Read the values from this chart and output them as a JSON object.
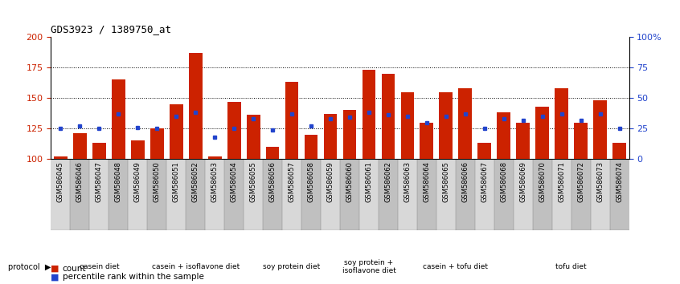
{
  "title": "GDS3923 / 1389750_at",
  "samples": [
    "GSM586045",
    "GSM586046",
    "GSM586047",
    "GSM586048",
    "GSM586049",
    "GSM586050",
    "GSM586051",
    "GSM586052",
    "GSM586053",
    "GSM586054",
    "GSM586055",
    "GSM586056",
    "GSM586057",
    "GSM586058",
    "GSM586059",
    "GSM586060",
    "GSM586061",
    "GSM586062",
    "GSM586063",
    "GSM586064",
    "GSM586065",
    "GSM586066",
    "GSM586067",
    "GSM586068",
    "GSM586069",
    "GSM586070",
    "GSM586071",
    "GSM586072",
    "GSM586073",
    "GSM586074"
  ],
  "counts": [
    102,
    121,
    113,
    165,
    115,
    125,
    145,
    187,
    102,
    147,
    136,
    110,
    163,
    120,
    137,
    140,
    173,
    170,
    155,
    130,
    155,
    158,
    113,
    138,
    130,
    143,
    158,
    130,
    148,
    113
  ],
  "percentile_ranks": [
    25,
    27,
    25,
    37,
    26,
    25,
    35,
    38,
    18,
    25,
    33,
    24,
    37,
    27,
    33,
    34,
    38,
    36,
    35,
    30,
    35,
    37,
    25,
    33,
    32,
    35,
    37,
    32,
    37,
    25
  ],
  "groups": [
    {
      "label": "casein diet",
      "start": 0,
      "end": 5,
      "color": "#ccffcc"
    },
    {
      "label": "casein + isoflavone diet",
      "start": 5,
      "end": 10,
      "color": "#77dd77"
    },
    {
      "label": "soy protein diet",
      "start": 10,
      "end": 15,
      "color": "#ccffcc"
    },
    {
      "label": "soy protein +\nisoflavone diet",
      "start": 15,
      "end": 18,
      "color": "#77dd77"
    },
    {
      "label": "casein + tofu diet",
      "start": 18,
      "end": 24,
      "color": "#ccffcc"
    },
    {
      "label": "tofu diet",
      "start": 24,
      "end": 30,
      "color": "#77dd77"
    }
  ],
  "bar_color": "#cc2200",
  "blue_color": "#2244cc",
  "base": 100,
  "ymin": 100,
  "ymax": 200,
  "yticks_left": [
    100,
    125,
    150,
    175,
    200
  ],
  "yticks_right": [
    0,
    25,
    50,
    75,
    100
  ],
  "background_color": "#ffffff",
  "tick_bg_light": "#d8d8d8",
  "tick_bg_dark": "#c0c0c0",
  "legend_count": "count",
  "legend_percentile": "percentile rank within the sample"
}
